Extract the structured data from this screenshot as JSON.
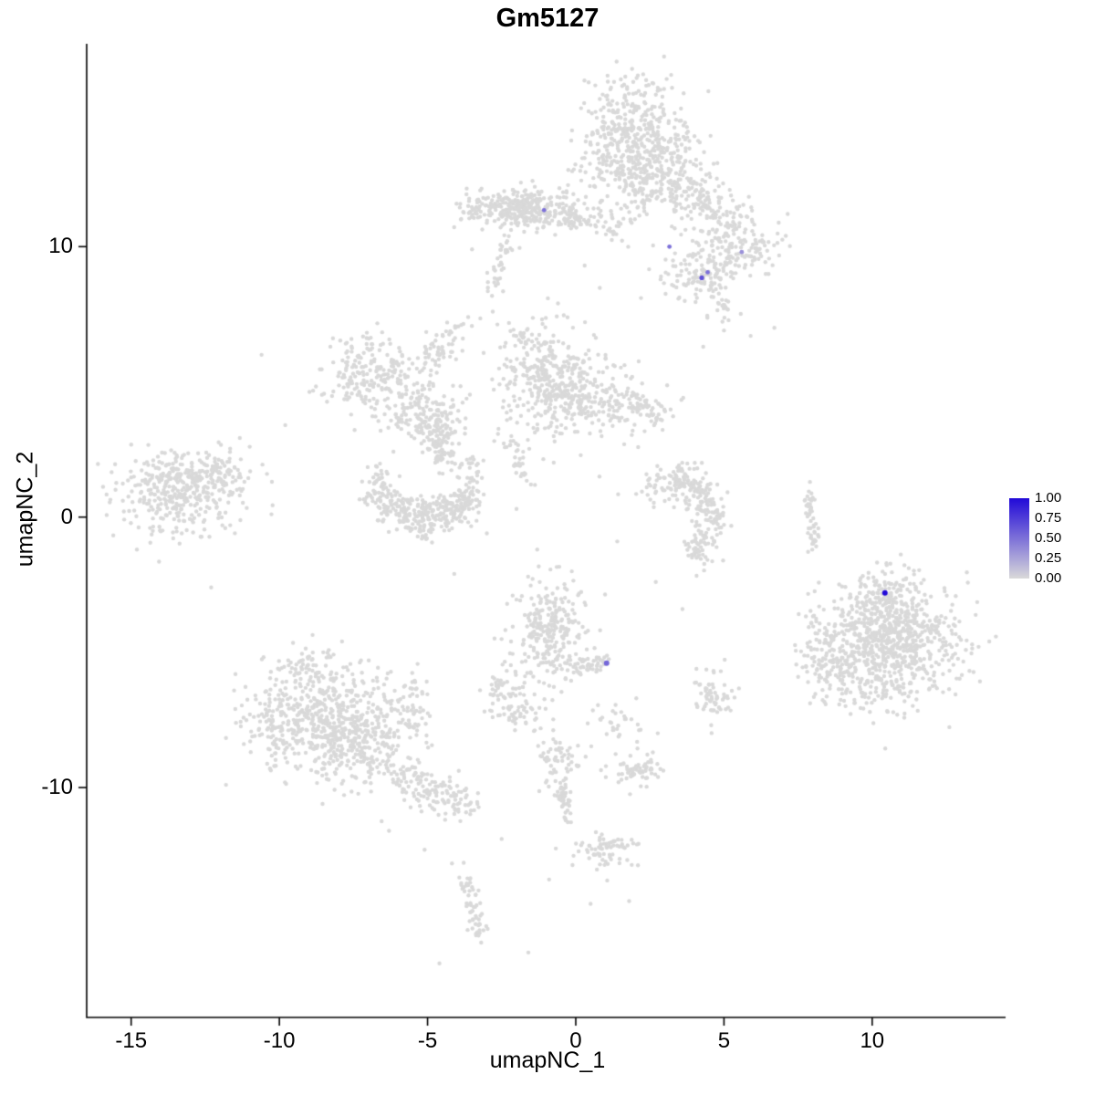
{
  "chart_data": {
    "type": "scatter",
    "title": "Gm5127",
    "xlabel": "umapNC_1",
    "ylabel": "umapNC_2",
    "xlim": [
      -16.5,
      14.5
    ],
    "ylim": [
      -18.5,
      17.5
    ],
    "grid": false,
    "seed": 42,
    "x_ticks": [
      {
        "value": -15,
        "label": "-15"
      },
      {
        "value": -10,
        "label": "-10"
      },
      {
        "value": -5,
        "label": "-5"
      },
      {
        "value": 0,
        "label": "0"
      },
      {
        "value": 5,
        "label": "5"
      },
      {
        "value": 10,
        "label": "10"
      }
    ],
    "y_ticks": [
      {
        "value": 10,
        "label": "10"
      },
      {
        "value": 0,
        "label": "0"
      },
      {
        "value": -10,
        "label": "-10"
      }
    ],
    "legend": {
      "position": "right",
      "labels": [
        "1.00",
        "0.75",
        "0.50",
        "0.25",
        "0.00"
      ],
      "color_high": "#2109D8",
      "color_low": "#D9D9D9"
    },
    "point_color_zero": "#D9D9D9",
    "background_clusters": [
      {
        "type": "gauss",
        "cx": 1.9,
        "cy": 14.0,
        "sx": 0.95,
        "sy": 1.05,
        "n": 480
      },
      {
        "type": "gauss",
        "cx": 2.7,
        "cy": 12.4,
        "sx": 0.95,
        "sy": 0.75,
        "n": 180
      },
      {
        "type": "line",
        "x1": 3.4,
        "y1": 12.2,
        "x2": 5.4,
        "y2": 11.1,
        "w": 0.4,
        "n": 110
      },
      {
        "type": "gauss",
        "cx": 1.0,
        "cy": 10.9,
        "sx": 0.5,
        "sy": 0.45,
        "n": 40
      },
      {
        "type": "gauss",
        "cx": 5.5,
        "cy": 10.1,
        "sx": 0.75,
        "sy": 0.55,
        "n": 140
      },
      {
        "type": "gauss",
        "cx": 4.15,
        "cy": 9.0,
        "sx": 0.7,
        "sy": 0.55,
        "n": 120
      },
      {
        "type": "gauss",
        "cx": 4.9,
        "cy": 7.8,
        "sx": 0.3,
        "sy": 0.3,
        "n": 20
      },
      {
        "type": "gauss",
        "cx": -1.8,
        "cy": 11.4,
        "sx": 0.9,
        "sy": 0.35,
        "n": 320
      },
      {
        "type": "line",
        "x1": -0.7,
        "y1": 11.25,
        "x2": 0.5,
        "y2": 10.95,
        "w": 0.15,
        "n": 45
      },
      {
        "type": "gauss",
        "cx": -3.3,
        "cy": 11.5,
        "sx": 0.25,
        "sy": 0.25,
        "n": 25
      },
      {
        "type": "line",
        "x1": -2.9,
        "y1": 8.3,
        "x2": -2.2,
        "y2": 10.5,
        "w": 0.15,
        "n": 40
      },
      {
        "type": "gauss",
        "cx": -6.9,
        "cy": 5.3,
        "sx": 0.8,
        "sy": 0.7,
        "n": 200
      },
      {
        "type": "gauss",
        "cx": -5.4,
        "cy": 4.0,
        "sx": 0.65,
        "sy": 0.6,
        "n": 140
      },
      {
        "type": "line",
        "x1": -5.2,
        "y1": 5.4,
        "x2": -3.9,
        "y2": 7.2,
        "w": 0.25,
        "n": 65
      },
      {
        "type": "gauss",
        "cx": -4.6,
        "cy": 3.3,
        "sx": 0.45,
        "sy": 0.45,
        "n": 80
      },
      {
        "type": "line",
        "x1": -4.7,
        "y1": 3.0,
        "x2": -4.3,
        "y2": 1.8,
        "w": 0.2,
        "n": 45
      },
      {
        "type": "gauss",
        "cx": -0.9,
        "cy": 5.1,
        "sx": 0.8,
        "sy": 0.95,
        "n": 330
      },
      {
        "type": "gauss",
        "cx": 0.7,
        "cy": 4.3,
        "sx": 0.95,
        "sy": 0.65,
        "n": 200
      },
      {
        "type": "line",
        "x1": 2.0,
        "y1": 4.2,
        "x2": 3.0,
        "y2": 3.8,
        "w": 0.22,
        "n": 40
      },
      {
        "type": "line",
        "x1": -2.4,
        "y1": 3.1,
        "x2": -1.6,
        "y2": 1.3,
        "w": 0.18,
        "n": 35
      },
      {
        "type": "gauss",
        "cx": -1.7,
        "cy": 6.8,
        "sx": 0.45,
        "sy": 0.35,
        "n": 30
      },
      {
        "type": "arc",
        "cx": -5.1,
        "cy": 1.1,
        "rx": 1.5,
        "ry": 1.4,
        "a1": 185,
        "a2": 355,
        "w": 0.3,
        "n": 250
      },
      {
        "type": "arc",
        "cx": -5.1,
        "cy": 1.0,
        "rx": 0.9,
        "ry": 0.85,
        "a1": 200,
        "a2": 340,
        "w": 0.28,
        "n": 85
      },
      {
        "type": "gauss",
        "cx": -6.6,
        "cy": 1.5,
        "sx": 0.25,
        "sy": 0.35,
        "n": 35
      },
      {
        "type": "gauss",
        "cx": -3.6,
        "cy": 1.6,
        "sx": 0.25,
        "sy": 0.35,
        "n": 35
      },
      {
        "type": "gauss",
        "cx": -13.3,
        "cy": 1.0,
        "sx": 1.05,
        "sy": 0.8,
        "n": 400
      },
      {
        "type": "gauss",
        "cx": -11.9,
        "cy": 1.7,
        "sx": 0.45,
        "sy": 0.35,
        "n": 50
      },
      {
        "type": "arc",
        "cx": 3.5,
        "cy": 0.0,
        "rx": 1.1,
        "ry": 1.45,
        "a1": -75,
        "a2": 100,
        "w": 0.32,
        "n": 200
      },
      {
        "type": "gauss",
        "cx": 3.2,
        "cy": 1.2,
        "sx": 0.5,
        "sy": 0.38,
        "n": 70
      },
      {
        "type": "line",
        "x1": 7.85,
        "y1": 0.9,
        "x2": 8.05,
        "y2": -1.3,
        "w": 0.1,
        "n": 50
      },
      {
        "type": "gauss",
        "cx": 10.3,
        "cy": -4.5,
        "sx": 1.2,
        "sy": 1.1,
        "n": 600
      },
      {
        "type": "gauss",
        "cx": 11.2,
        "cy": -4.3,
        "sx": 0.85,
        "sy": 0.85,
        "n": 200
      },
      {
        "type": "gauss",
        "cx": 10.4,
        "cy": -2.7,
        "sx": 0.55,
        "sy": 0.45,
        "n": 80
      },
      {
        "type": "gauss",
        "cx": 8.5,
        "cy": -5.3,
        "sx": 0.55,
        "sy": 0.7,
        "n": 80
      },
      {
        "type": "gauss",
        "cx": 10.0,
        "cy": -6.4,
        "sx": 0.8,
        "sy": 0.4,
        "n": 60
      },
      {
        "type": "gauss",
        "cx": -0.8,
        "cy": -4.2,
        "sx": 0.6,
        "sy": 0.95,
        "n": 280
      },
      {
        "type": "line",
        "x1": -0.2,
        "y1": -5.5,
        "x2": 1.0,
        "y2": -5.45,
        "w": 0.15,
        "n": 50
      },
      {
        "type": "gauss",
        "cx": -2.3,
        "cy": -6.4,
        "sx": 0.4,
        "sy": 0.4,
        "n": 55
      },
      {
        "type": "gauss",
        "cx": -1.8,
        "cy": -7.2,
        "sx": 0.35,
        "sy": 0.35,
        "n": 40
      },
      {
        "type": "gauss",
        "cx": 4.6,
        "cy": -6.7,
        "sx": 0.35,
        "sy": 0.5,
        "n": 65
      },
      {
        "type": "gauss",
        "cx": -8.8,
        "cy": -7.3,
        "sx": 1.1,
        "sy": 1.0,
        "n": 420
      },
      {
        "type": "gauss",
        "cx": -7.3,
        "cy": -8.4,
        "sx": 1.0,
        "sy": 0.85,
        "n": 280
      },
      {
        "type": "line",
        "x1": -6.0,
        "y1": -9.5,
        "x2": -3.6,
        "y2": -10.8,
        "w": 0.35,
        "n": 140
      },
      {
        "type": "gauss",
        "cx": -10.2,
        "cy": -8.0,
        "sx": 0.45,
        "sy": 0.65,
        "n": 55
      },
      {
        "type": "gauss",
        "cx": -9.0,
        "cy": -5.6,
        "sx": 0.7,
        "sy": 0.4,
        "n": 50
      },
      {
        "type": "gauss",
        "cx": -5.8,
        "cy": -7.0,
        "sx": 0.5,
        "sy": 0.5,
        "n": 70
      },
      {
        "type": "gauss",
        "cx": -0.6,
        "cy": -9.0,
        "sx": 0.35,
        "sy": 0.55,
        "n": 60
      },
      {
        "type": "line",
        "x1": -0.5,
        "y1": -9.8,
        "x2": -0.2,
        "y2": -11.4,
        "w": 0.13,
        "n": 45
      },
      {
        "type": "gauss",
        "cx": 2.05,
        "cy": -9.4,
        "sx": 0.45,
        "sy": 0.3,
        "n": 60
      },
      {
        "type": "gauss",
        "cx": 1.0,
        "cy": -12.3,
        "sx": 0.55,
        "sy": 0.35,
        "n": 70
      },
      {
        "type": "line",
        "x1": -3.8,
        "y1": -13.0,
        "x2": -3.2,
        "y2": -15.6,
        "w": 0.15,
        "n": 60
      },
      {
        "type": "gauss",
        "cx": 1.4,
        "cy": -7.6,
        "sx": 0.6,
        "sy": 0.5,
        "n": 35
      }
    ],
    "sparse_points": [
      [
        -10.6,
        6.0
      ],
      [
        6.7,
        7.0
      ],
      [
        5.0,
        6.9
      ],
      [
        4.3,
        6.3
      ],
      [
        -2.8,
        7.6
      ],
      [
        -0.6,
        7.9
      ],
      [
        2.2,
        8.1
      ],
      [
        0.3,
        9.3
      ],
      [
        -3.5,
        9.9
      ],
      [
        -12.3,
        -2.6
      ],
      [
        -4.1,
        -2.1
      ],
      [
        -3.0,
        -0.6
      ],
      [
        -2.0,
        0.3
      ],
      [
        -1.3,
        -1.2
      ],
      [
        1.4,
        -0.9
      ],
      [
        0.8,
        1.5
      ],
      [
        2.7,
        -2.4
      ],
      [
        3.6,
        -3.4
      ],
      [
        2.6,
        -8.7
      ],
      [
        -5.1,
        -12.3
      ],
      [
        -6.3,
        -11.6
      ],
      [
        -11.8,
        -9.9
      ],
      [
        -1.6,
        -16.1
      ],
      [
        -4.6,
        -16.5
      ],
      [
        0.5,
        -14.3
      ],
      [
        7.9,
        1.3
      ],
      [
        5.9,
        6.7
      ],
      [
        -9.8,
        3.4
      ],
      [
        -11.0,
        2.6
      ],
      [
        -0.9,
        -13.4
      ],
      [
        1.8,
        -14.2
      ],
      [
        -2.5,
        -11.9
      ]
    ],
    "expressing_cells": [
      {
        "x": -1.07,
        "y": 11.35,
        "value": 0.5,
        "r": 2.4
      },
      {
        "x": 3.16,
        "y": 10.0,
        "value": 0.5,
        "r": 2.4
      },
      {
        "x": 5.6,
        "y": 9.8,
        "value": 0.35,
        "r": 2.4
      },
      {
        "x": 4.25,
        "y": 8.85,
        "value": 0.65,
        "r": 2.6
      },
      {
        "x": 4.45,
        "y": 9.05,
        "value": 0.5,
        "r": 2.4
      },
      {
        "x": 10.43,
        "y": -2.8,
        "value": 1.0,
        "r": 3.0
      },
      {
        "x": 1.04,
        "y": -5.4,
        "value": 0.55,
        "r": 3.0
      }
    ]
  }
}
